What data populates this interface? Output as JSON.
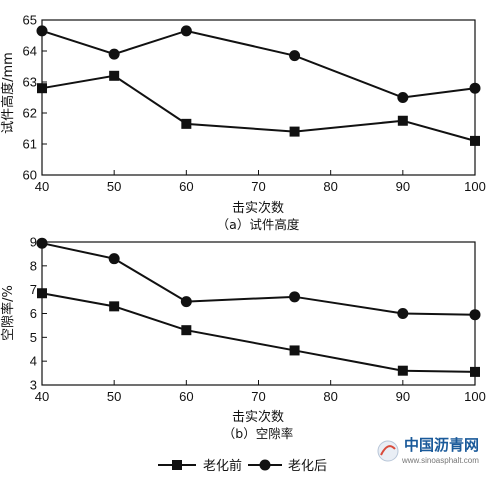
{
  "chart_data": [
    {
      "type": "line",
      "caption": "（a）试件高度",
      "xlabel": "击实次数",
      "ylabel": "试件高度/mm",
      "xlim": [
        40,
        100
      ],
      "ylim": [
        60,
        65
      ],
      "xticks": [
        40,
        50,
        60,
        70,
        80,
        90,
        100
      ],
      "yticks": [
        60,
        61,
        62,
        63,
        64,
        65
      ],
      "x": [
        40,
        50,
        60,
        75,
        90,
        100
      ],
      "series": [
        {
          "name": "老化前",
          "marker": "square",
          "values": [
            62.8,
            63.2,
            61.65,
            61.4,
            61.75,
            61.1
          ]
        },
        {
          "name": "老化后",
          "marker": "circle",
          "values": [
            64.65,
            63.9,
            64.65,
            63.85,
            62.5,
            62.8
          ]
        }
      ]
    },
    {
      "type": "line",
      "caption": "（b）空隙率",
      "xlabel": "击实次数",
      "ylabel": "空隙率/%",
      "xlim": [
        40,
        100
      ],
      "ylim": [
        3,
        9
      ],
      "xticks": [
        40,
        50,
        60,
        70,
        80,
        90,
        100
      ],
      "yticks": [
        3,
        4,
        5,
        6,
        7,
        8,
        9
      ],
      "x": [
        40,
        50,
        60,
        75,
        90,
        100
      ],
      "series": [
        {
          "name": "老化前",
          "marker": "square",
          "values": [
            6.85,
            6.3,
            5.3,
            4.45,
            3.6,
            3.55
          ]
        },
        {
          "name": "老化后",
          "marker": "circle",
          "values": [
            8.95,
            8.3,
            6.5,
            6.7,
            6.0,
            5.95
          ]
        }
      ]
    }
  ],
  "legend": [
    {
      "label": "老化前",
      "marker": "square"
    },
    {
      "label": "老化后",
      "marker": "circle"
    }
  ],
  "watermark": {
    "name": "中国沥青网",
    "url": "www.sinoasphalt.com"
  }
}
